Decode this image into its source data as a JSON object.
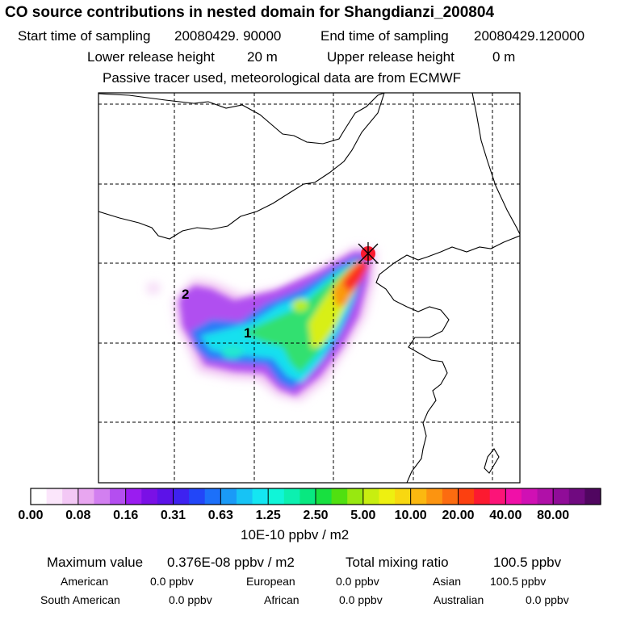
{
  "header": {
    "title": "CO  source contributions in nested domain for Shangdianzi_200804",
    "start_label": "Start time of sampling",
    "start_value": "20080429. 90000",
    "end_label": "End time of sampling",
    "end_value": "20080429.120000",
    "lower_label": "Lower release height",
    "lower_value": "20 m",
    "upper_label": "Upper release height",
    "upper_value": "0 m",
    "note": "Passive tracer used, meteorological data are from ECMWF"
  },
  "map": {
    "region_labels": [
      "1",
      "2"
    ],
    "station_marker": "receptor-site"
  },
  "colorbar": {
    "tick_labels": [
      "0.00",
      "0.08",
      "0.16",
      "0.31",
      "0.63",
      "1.25",
      "2.50",
      "5.00",
      "10.00",
      "20.00",
      "40.00",
      "80.00"
    ],
    "unit": "10E-10 ppbv / m2",
    "colors": [
      "#ffffff",
      "#fbe6fb",
      "#f3c8f5",
      "#e8a6f0",
      "#d27ff0",
      "#b44ef0",
      "#9a1cf0",
      "#7a10e6",
      "#5c12e8",
      "#3e22f0",
      "#2246f8",
      "#1c70fa",
      "#1a9af7",
      "#17c3f5",
      "#14e6f2",
      "#10f5d8",
      "#0cf0b0",
      "#08e880",
      "#18e040",
      "#50e010",
      "#98e810",
      "#c8ee10",
      "#eef010",
      "#f8d810",
      "#fbb810",
      "#fc9410",
      "#fc6c10",
      "#fc4010",
      "#fc1a30",
      "#fc1478",
      "#f010a8",
      "#d010b4",
      "#b010a8",
      "#900c98",
      "#700a80",
      "#500660"
    ],
    "segments_per_interval": 3
  },
  "stats": {
    "max_label": "Maximum value",
    "max_value": "0.376E-08 ppbv / m2",
    "total_label": "Total mixing ratio",
    "total_value": "100.5 ppbv",
    "regions": [
      {
        "name": "American",
        "value": "0.0 ppbv"
      },
      {
        "name": "European",
        "value": "0.0 ppbv"
      },
      {
        "name": "Asian",
        "value": "100.5 ppbv"
      },
      {
        "name": "South American",
        "value": "0.0 ppbv"
      },
      {
        "name": "African",
        "value": "0.0 ppbv"
      },
      {
        "name": "Australian",
        "value": "0.0 ppbv"
      }
    ]
  }
}
